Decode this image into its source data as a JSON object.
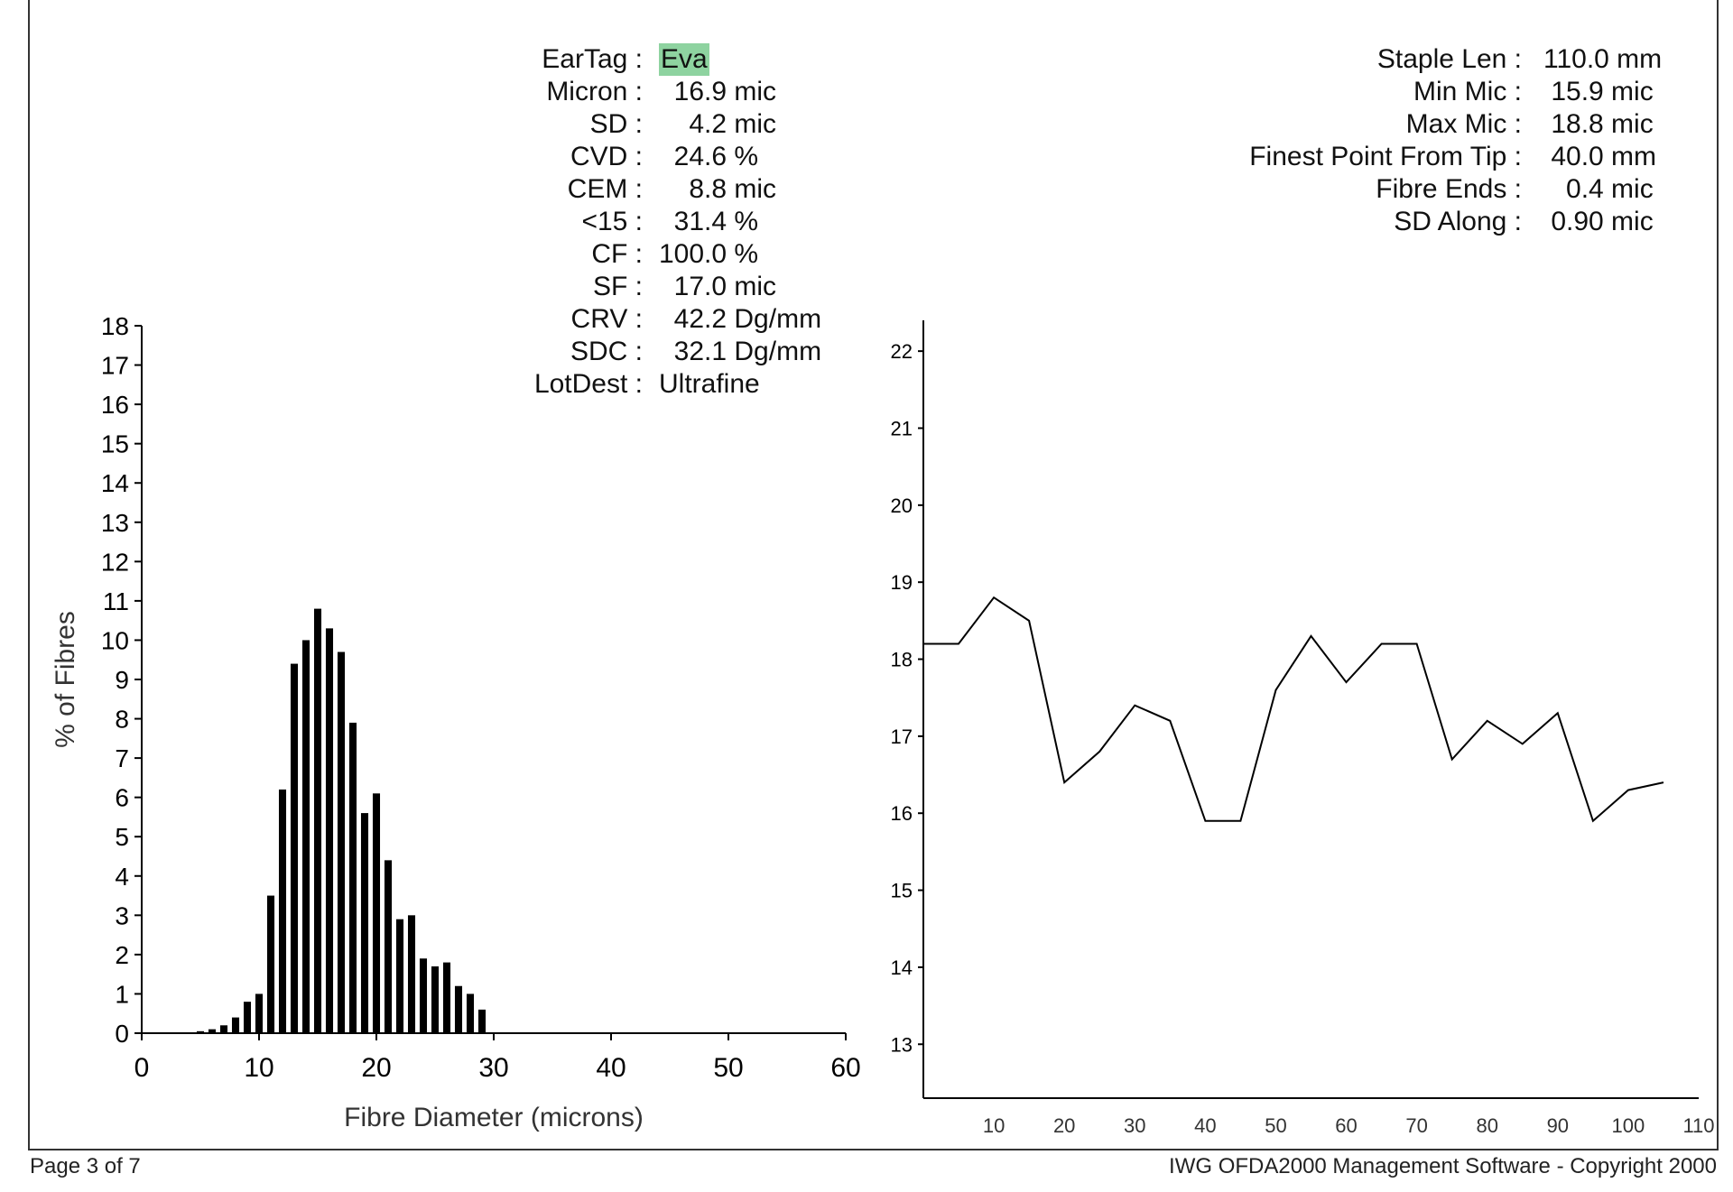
{
  "stats_left": [
    {
      "label": "EarTag :",
      "value": "Eva",
      "highlight": true
    },
    {
      "label": "Micron :",
      "value": "  16.9 mic"
    },
    {
      "label": "SD :",
      "value": "    4.2 mic"
    },
    {
      "label": "CVD :",
      "value": "  24.6 %"
    },
    {
      "label": "CEM :",
      "value": "    8.8 mic"
    },
    {
      "label": "<15 :",
      "value": "  31.4 %"
    },
    {
      "label": "CF :",
      "value": "100.0 %"
    },
    {
      "label": "SF :",
      "value": "  17.0 mic"
    },
    {
      "label": "CRV :",
      "value": "  42.2 Dg/mm"
    },
    {
      "label": "SDC :",
      "value": "  32.1 Dg/mm"
    },
    {
      "label": "LotDest :",
      "value": "Ultrafine"
    }
  ],
  "stats_right": [
    {
      "label": "Staple Len :",
      "value": "110.0 mm"
    },
    {
      "label": "Min Mic :",
      "value": " 15.9 mic"
    },
    {
      "label": "Max Mic :",
      "value": " 18.8 mic"
    },
    {
      "label": "Finest Point From Tip :",
      "value": " 40.0 mm"
    },
    {
      "label": "Fibre Ends :",
      "value": "   0.4 mic"
    },
    {
      "label": "SD Along :",
      "value": " 0.90 mic"
    }
  ],
  "footer": {
    "left": "Page 3 of 7",
    "right": "IWG OFDA2000 Management Software - Copyright 2000"
  },
  "colors": {
    "highlight": "#8ed3a0",
    "ink": "#000000"
  },
  "chart_data": [
    {
      "type": "bar",
      "title": "",
      "xlabel": "Fibre Diameter (microns)",
      "ylabel": "% of Fibres",
      "xlim": [
        0,
        60
      ],
      "ylim": [
        0,
        18
      ],
      "xticks": [
        0,
        10,
        20,
        30,
        40,
        50,
        60
      ],
      "yticks": [
        0,
        1,
        2,
        3,
        4,
        5,
        6,
        7,
        8,
        9,
        10,
        11,
        12,
        13,
        14,
        15,
        16,
        17,
        18
      ],
      "x": [
        5,
        6,
        7,
        8,
        9,
        10,
        11,
        12,
        13,
        14,
        15,
        16,
        17,
        18,
        19,
        20,
        21,
        22,
        23,
        24,
        25,
        26,
        27,
        28,
        29
      ],
      "values": [
        0.05,
        0.1,
        0.2,
        0.4,
        0.8,
        1.0,
        3.5,
        6.2,
        9.4,
        10.0,
        10.8,
        10.3,
        9.7,
        7.9,
        5.6,
        6.1,
        4.4,
        2.9,
        3.0,
        1.9,
        1.7,
        1.8,
        1.2,
        1.0,
        0.6
      ]
    },
    {
      "type": "line",
      "title": "",
      "xlabel": "",
      "ylabel": "",
      "xlim": [
        0,
        110
      ],
      "ylim": [
        12.3,
        22.4
      ],
      "xticks": [
        10,
        20,
        30,
        40,
        50,
        60,
        70,
        80,
        90,
        100,
        110
      ],
      "yticks": [
        13,
        14,
        15,
        16,
        17,
        18,
        19,
        20,
        21,
        22
      ],
      "x": [
        0,
        5,
        10,
        15,
        20,
        25,
        30,
        35,
        40,
        45,
        50,
        55,
        60,
        65,
        70,
        75,
        80,
        85,
        90,
        95,
        100,
        105
      ],
      "y": [
        18.2,
        18.2,
        18.8,
        18.5,
        16.4,
        16.8,
        17.4,
        17.2,
        15.9,
        15.9,
        17.6,
        18.3,
        17.7,
        18.2,
        18.2,
        16.7,
        17.2,
        16.9,
        17.3,
        15.9,
        16.3,
        16.4
      ]
    }
  ]
}
